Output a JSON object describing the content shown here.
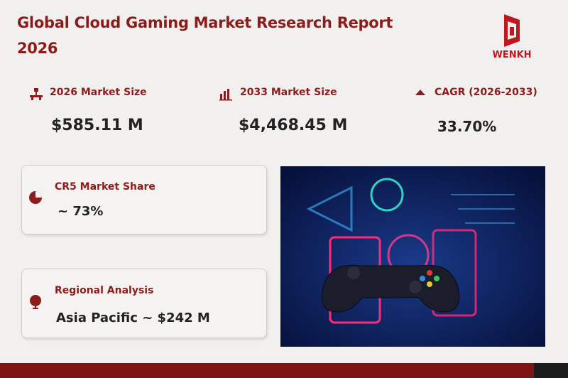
{
  "header": {
    "title": "Global Cloud Gaming Market Research Report 2026",
    "logo": "WENKH"
  },
  "stats": [
    {
      "label": "2026 Market Size",
      "value": "$585.11 M"
    },
    {
      "label": "2033 Market Size",
      "value": "$4,468.45 M"
    },
    {
      "label": "CAGR (2026-2033)",
      "value": "33.70%"
    }
  ],
  "cards": [
    {
      "label": "CR5 Market Share",
      "value": "~ 73%"
    },
    {
      "label": "Regional Analysis",
      "value": "Asia Pacific ~ $242 M"
    }
  ]
}
